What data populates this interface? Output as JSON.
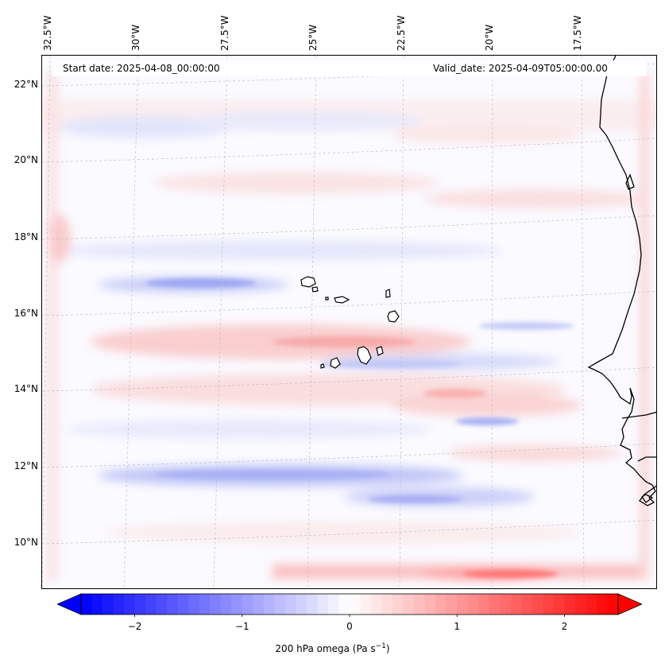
{
  "header": {
    "start_date": "Start date: 2025-04-08_00:00:00",
    "valid_date": "Valid_date: 2025-04-09T05:00:00.00"
  },
  "longitude_labels": [
    "32.5°W",
    "30°W",
    "27.5°W",
    "25°W",
    "22.5°W",
    "20°W",
    "17.5°W"
  ],
  "latitude_labels": [
    "22°N",
    "20°N",
    "18°N",
    "16°N",
    "14°N",
    "12°N",
    "10°N"
  ],
  "colorbar": {
    "label_prefix": "200 hPa omega (Pa s",
    "label_exp": "−1",
    "label_suffix": ")",
    "ticks": [
      "−2",
      "−1",
      "0",
      "1",
      "2"
    ],
    "tick_values": [
      -2,
      -1,
      0,
      1,
      2
    ],
    "range": [
      -2.5,
      2.5
    ],
    "colors": {
      "negative": "#0000ff",
      "zero": "#ffffff",
      "positive": "#ff0000"
    }
  },
  "colors": {
    "coastline": "#000000",
    "gridline": "#bbbbbb"
  }
}
